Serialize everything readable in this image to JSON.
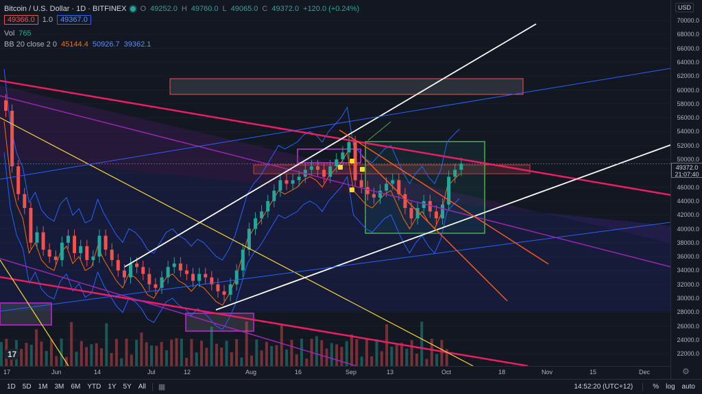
{
  "header": {
    "title": "Bitcoin / U.S. Dollar · 1D · BITFINEX",
    "ohlc": {
      "o_label": "O",
      "o": "49252.0",
      "h_label": "H",
      "h": "49760.0",
      "l_label": "L",
      "l": "49065.0",
      "c_label": "C",
      "c": "49372.0",
      "change": "+120.0 (+0.24%)"
    },
    "sell_price": "49366.0",
    "quantity": "1.0",
    "buy_price": "49367.0"
  },
  "indicators": {
    "vol_name": "Vol",
    "vol_value": "765",
    "bb_name": "BB 20 close 2 0",
    "bb_basis": "45144.4",
    "bb_upper": "50926.7",
    "bb_lower": "39362.1"
  },
  "price_axis": {
    "currency": "USD",
    "labels": [
      "70000.0",
      "68000.0",
      "66000.0",
      "64000.0",
      "62000.0",
      "60000.0",
      "58000.0",
      "56000.0",
      "54000.0",
      "52000.0",
      "50000.0",
      "48000.0",
      "46000.0",
      "44000.0",
      "42000.0",
      "40000.0",
      "38000.0",
      "36000.0",
      "34000.0",
      "32000.0",
      "30000.0",
      "28000.0",
      "26000.0",
      "24000.0",
      "22000.0"
    ],
    "last_price": "49372.0",
    "countdown": "21:07:40"
  },
  "time_axis": {
    "labels": [
      "17",
      "Jun",
      "14",
      "Jul",
      "12",
      "Aug",
      "16",
      "Sep",
      "13",
      "Oct",
      "18",
      "Nov",
      "15",
      "Dec"
    ]
  },
  "periods": [
    "1D",
    "5D",
    "1M",
    "3M",
    "6M",
    "YTD",
    "1Y",
    "5Y",
    "All"
  ],
  "status": {
    "clock": "14:52:20 (UTC+12)",
    "percent": "%",
    "log": "log",
    "auto": "auto"
  },
  "logo": "17",
  "colors": {
    "up": "#26a69a",
    "down": "#ef5350",
    "bg": "#131722"
  },
  "chart_data": {
    "type": "candlestick",
    "symbol": "Bitcoin / U.S. Dollar",
    "timeframe": "1D",
    "exchange": "BITFINEX",
    "last": {
      "open": 49252.0,
      "high": 49760.0,
      "low": 49065.0,
      "close": 49372.0,
      "change": 120.0,
      "change_pct": 0.24
    },
    "ylim": [
      22000,
      70000
    ],
    "x_ticks": [
      "17",
      "Jun",
      "14",
      "Jul",
      "12",
      "Aug",
      "16",
      "Sep",
      "13",
      "Oct",
      "18",
      "Nov",
      "15",
      "Dec"
    ],
    "closes_approx": [
      57000,
      49000,
      45000,
      43000,
      38000,
      39500,
      37000,
      36000,
      35500,
      38000,
      39000,
      36500,
      37500,
      35500,
      36000,
      39000,
      37000,
      35500,
      34000,
      33000,
      35000,
      34500,
      33500,
      32000,
      31500,
      33000,
      34500,
      35000,
      34000,
      33500,
      32500,
      33500,
      33000,
      32000,
      31000,
      30500,
      32000,
      34000,
      37000,
      40000,
      41500,
      42500,
      44000,
      45500,
      47000,
      46500,
      47000,
      47500,
      48500,
      49000,
      48500,
      47500,
      49000,
      50000,
      51000,
      52500,
      47000,
      46000,
      45000,
      44500,
      45500,
      46500,
      47000,
      45000,
      43000,
      41500,
      43000,
      44000,
      42500,
      41500,
      43500,
      47500,
      48500,
      49372
    ],
    "bollinger": {
      "period": 20,
      "source": "close",
      "mult": 2,
      "basis": 45144.4,
      "upper": 50926.7,
      "lower": 39362.1
    },
    "volume_last": 765
  }
}
